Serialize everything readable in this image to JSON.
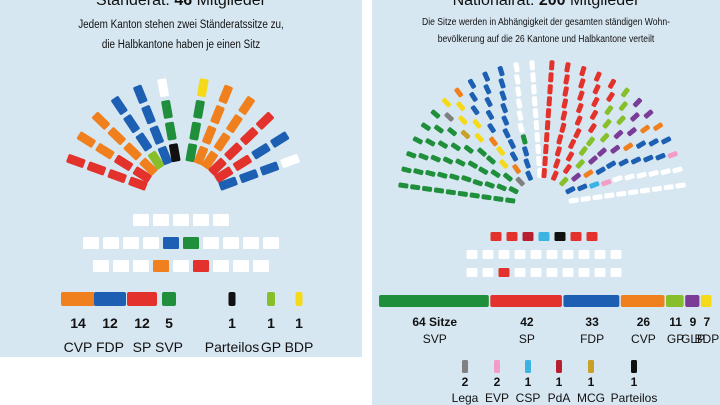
{
  "colors": {
    "SVP": "#1f8f3c",
    "SP": "#e3322b",
    "FDP": "#1c5fb3",
    "CVP": "#f0801e",
    "GP": "#86bf2a",
    "GLP": "#7a3c96",
    "BDP": "#f5da1a",
    "Lega": "#808080",
    "EVP": "#f39cc7",
    "CSP": "#3bb3e3",
    "PdA": "#b8202f",
    "MCG": "#c8a227",
    "Parteilos": "#111111",
    "empty": "#ffffff"
  },
  "left": {
    "title_prefix": "Ständerat:",
    "title_number": "46",
    "title_suffix": "Mitglieder",
    "subtitle_line1": "Jedem Kanton stehen zwei Ständeratssitze zu,",
    "subtitle_line2": "die Halbkantone haben je einen Sitz",
    "legend": [
      {
        "party": "CVP",
        "count": "14",
        "label": "CVP"
      },
      {
        "party": "FDP",
        "count": "12",
        "label": "FDP"
      },
      {
        "party": "SP",
        "count": "12",
        "label": "SP"
      },
      {
        "party": "SVP",
        "count": "5",
        "label": "SVP"
      },
      {
        "party": "Parteilos",
        "count": "1",
        "label": "Parteilos"
      },
      {
        "party": "GP",
        "count": "1",
        "label": "GP"
      },
      {
        "party": "BDP",
        "count": "1",
        "label": "BDP"
      }
    ],
    "rows_seats": [
      [
        "empty",
        "empty",
        "empty",
        "empty",
        "empty"
      ],
      [
        "empty",
        "empty",
        "empty",
        "empty",
        "FDP",
        "SVP",
        "empty",
        "empty",
        "empty",
        "empty"
      ],
      [
        "empty",
        "empty",
        "empty",
        "CVP",
        "empty",
        "SP",
        "empty",
        "empty",
        "empty"
      ]
    ]
  },
  "right": {
    "title_prefix": "Nationalrat:",
    "title_number": "200",
    "title_suffix": "Mitglieder",
    "subtitle_line1": "Die Sitze werden in Abhängigkeit der gesamten ständigen Wohn-",
    "subtitle_line2": "bevölkerung auf die 26 Kantone und Halbkantone verteilt",
    "bar_items": [
      {
        "party": "SVP",
        "count": "64 Sitze",
        "label": "SVP",
        "seats": 64
      },
      {
        "party": "SP",
        "count": "42",
        "label": "SP",
        "seats": 42
      },
      {
        "party": "FDP",
        "count": "33",
        "label": "FDP",
        "seats": 33
      },
      {
        "party": "CVP",
        "count": "26",
        "label": "CVP",
        "seats": 26
      },
      {
        "party": "GP",
        "count": "11",
        "label": "GP",
        "seats": 11
      },
      {
        "party": "GLP",
        "count": "9",
        "label": "GLP",
        "seats": 9
      },
      {
        "party": "BDP",
        "count": "7",
        "label": "BDP",
        "seats": 7
      }
    ],
    "small_items": [
      {
        "party": "Lega",
        "count": "2",
        "label": "Lega"
      },
      {
        "party": "EVP",
        "count": "2",
        "label": "EVP"
      },
      {
        "party": "CSP",
        "count": "1",
        "label": "CSP"
      },
      {
        "party": "PdA",
        "count": "1",
        "label": "PdA"
      },
      {
        "party": "MCG",
        "count": "1",
        "label": "MCG"
      },
      {
        "party": "Parteilos",
        "count": "1",
        "label": "Parteilos"
      }
    ],
    "rows_seats": [
      [
        "SP",
        "SP",
        "PdA",
        "CSP",
        "Parteilos",
        "SP",
        "SP"
      ],
      [
        "empty",
        "empty",
        "empty",
        "empty",
        "empty",
        "empty",
        "empty",
        "empty",
        "empty",
        "empty"
      ],
      [
        "empty",
        "empty",
        "SP",
        "empty",
        "empty",
        "empty",
        "empty",
        "empty",
        "empty",
        "empty"
      ]
    ]
  }
}
